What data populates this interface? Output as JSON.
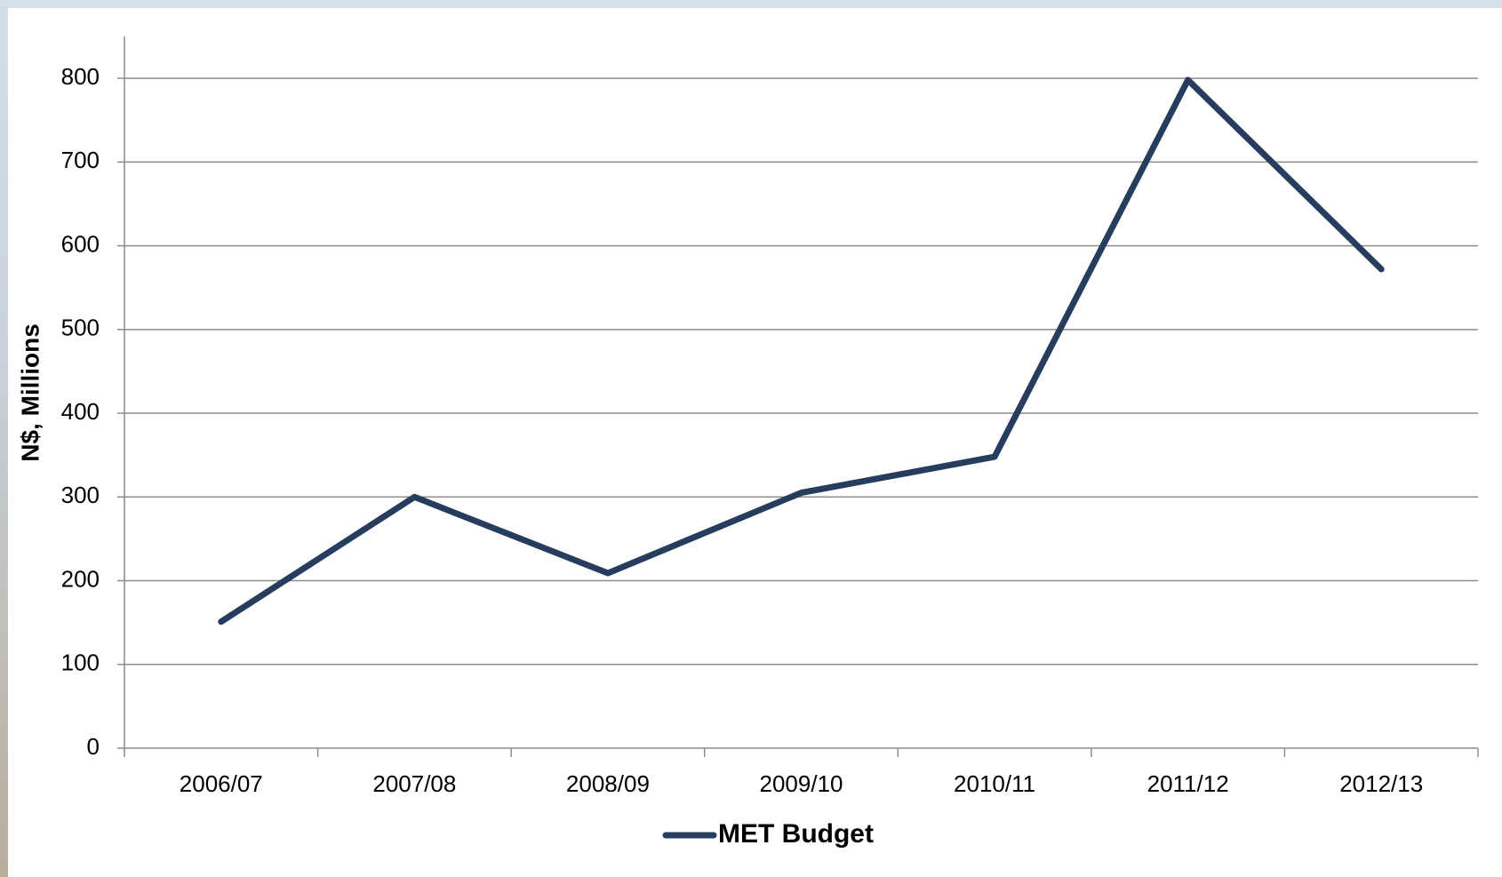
{
  "chart_data": {
    "type": "line",
    "categories": [
      "2006/07",
      "2007/08",
      "2008/09",
      "2009/10",
      "2010/11",
      "2011/12",
      "2012/13"
    ],
    "series": [
      {
        "name": "MET Budget",
        "color": "#263d5e",
        "values": [
          151,
          300,
          209,
          305,
          348,
          798,
          572
        ]
      }
    ],
    "y_label": "N$, Millions",
    "ylim": [
      0,
      850
    ],
    "yticks": [
      0,
      100,
      200,
      300,
      400,
      500,
      600,
      700,
      800
    ],
    "grid": true
  }
}
